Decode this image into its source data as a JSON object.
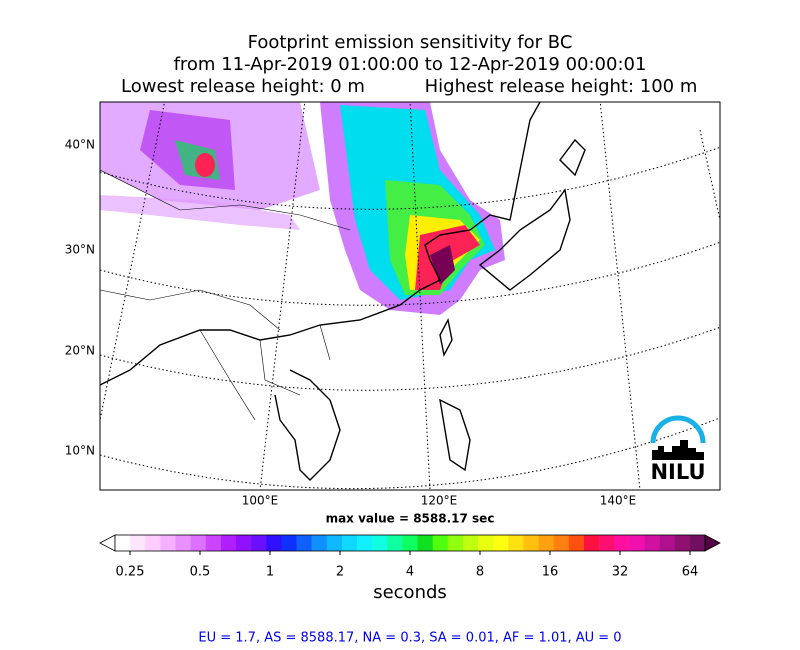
{
  "header": {
    "title": "Footprint emission sensitivity for BC",
    "subtitle": "from 11-Apr-2019 01:00:00 to 12-Apr-2019 00:00:01",
    "release_low": "Lowest release height: 0 m",
    "release_high": "Highest release height: 100 m"
  },
  "map": {
    "lat_labels": [
      "40°N",
      "30°N",
      "20°N",
      "10°N"
    ],
    "lon_labels": [
      "100°E",
      "120°E",
      "140°E"
    ],
    "max_value": "max value = 8588.17 sec",
    "logo": "NILU"
  },
  "colorbar": {
    "ticks": [
      0.25,
      0.5,
      1,
      2,
      4,
      8,
      16,
      32,
      64
    ],
    "label": "seconds"
  },
  "footer": "EU = 1.7,  AS = 8588.17,  NA = 0.3,  SA = 0.01,  AF = 1.01,  AU = 0"
}
